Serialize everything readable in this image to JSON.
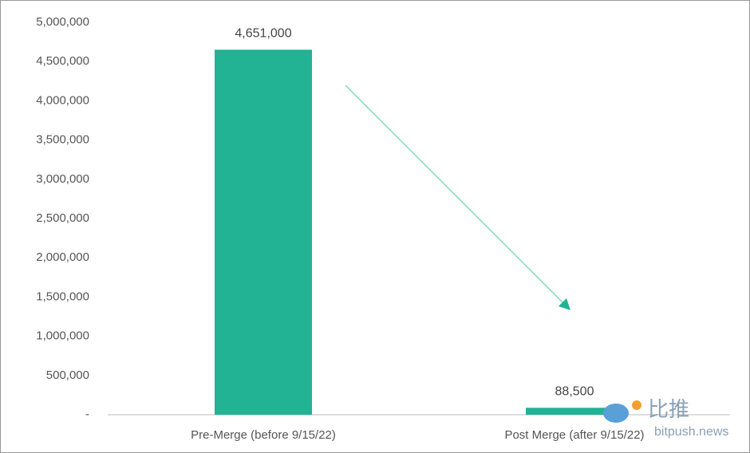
{
  "chart_data": {
    "type": "bar",
    "categories": [
      "Pre-Merge (before 9/15/22)",
      "Post Merge (after 9/15/22)"
    ],
    "values": [
      4651000,
      88500
    ],
    "value_labels": [
      "4,651,000",
      "88,500"
    ],
    "color": "#22b294",
    "ylim": [
      0,
      5000000
    ],
    "yticks": [
      {
        "value": 0,
        "label": "-"
      },
      {
        "value": 500000,
        "label": "500,000"
      },
      {
        "value": 1000000,
        "label": "1,000,000"
      },
      {
        "value": 1500000,
        "label": "1,500,000"
      },
      {
        "value": 2000000,
        "label": "2,000,000"
      },
      {
        "value": 2500000,
        "label": "2,500,000"
      },
      {
        "value": 3000000,
        "label": "3,000,000"
      },
      {
        "value": 3500000,
        "label": "3,500,000"
      },
      {
        "value": 4000000,
        "label": "4,000,000"
      },
      {
        "value": 4500000,
        "label": "4,500,000"
      },
      {
        "value": 5000000,
        "label": "5,000,000"
      }
    ],
    "grid": false
  },
  "watermark": {
    "brand": "比推",
    "site": "bitpush.news"
  }
}
